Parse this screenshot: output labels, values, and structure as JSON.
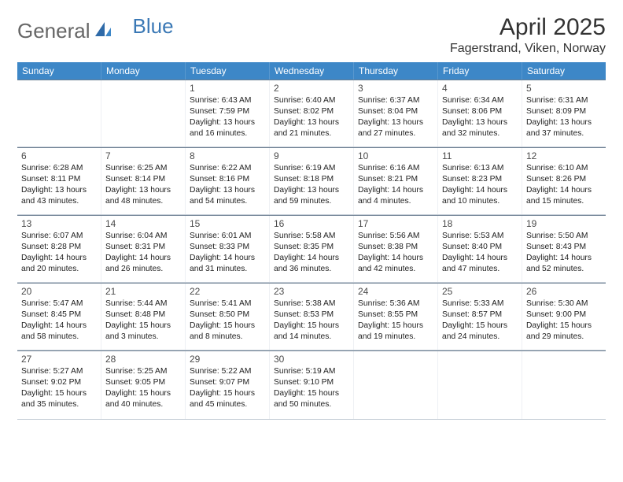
{
  "logo": {
    "text1": "General",
    "text2": "Blue"
  },
  "title": "April 2025",
  "location": "Fagerstrand, Viken, Norway",
  "colors": {
    "header_bg": "#3d87c7",
    "header_text": "#ffffff",
    "row_border_top": "#6b7d90",
    "row_border_bottom": "#c8d0d9",
    "logo_blue": "#3a78b5",
    "body_text": "#333333"
  },
  "days_of_week": [
    "Sunday",
    "Monday",
    "Tuesday",
    "Wednesday",
    "Thursday",
    "Friday",
    "Saturday"
  ],
  "weeks": [
    [
      null,
      null,
      {
        "n": "1",
        "sr": "Sunrise: 6:43 AM",
        "ss": "Sunset: 7:59 PM",
        "d1": "Daylight: 13 hours",
        "d2": "and 16 minutes."
      },
      {
        "n": "2",
        "sr": "Sunrise: 6:40 AM",
        "ss": "Sunset: 8:02 PM",
        "d1": "Daylight: 13 hours",
        "d2": "and 21 minutes."
      },
      {
        "n": "3",
        "sr": "Sunrise: 6:37 AM",
        "ss": "Sunset: 8:04 PM",
        "d1": "Daylight: 13 hours",
        "d2": "and 27 minutes."
      },
      {
        "n": "4",
        "sr": "Sunrise: 6:34 AM",
        "ss": "Sunset: 8:06 PM",
        "d1": "Daylight: 13 hours",
        "d2": "and 32 minutes."
      },
      {
        "n": "5",
        "sr": "Sunrise: 6:31 AM",
        "ss": "Sunset: 8:09 PM",
        "d1": "Daylight: 13 hours",
        "d2": "and 37 minutes."
      }
    ],
    [
      {
        "n": "6",
        "sr": "Sunrise: 6:28 AM",
        "ss": "Sunset: 8:11 PM",
        "d1": "Daylight: 13 hours",
        "d2": "and 43 minutes."
      },
      {
        "n": "7",
        "sr": "Sunrise: 6:25 AM",
        "ss": "Sunset: 8:14 PM",
        "d1": "Daylight: 13 hours",
        "d2": "and 48 minutes."
      },
      {
        "n": "8",
        "sr": "Sunrise: 6:22 AM",
        "ss": "Sunset: 8:16 PM",
        "d1": "Daylight: 13 hours",
        "d2": "and 54 minutes."
      },
      {
        "n": "9",
        "sr": "Sunrise: 6:19 AM",
        "ss": "Sunset: 8:18 PM",
        "d1": "Daylight: 13 hours",
        "d2": "and 59 minutes."
      },
      {
        "n": "10",
        "sr": "Sunrise: 6:16 AM",
        "ss": "Sunset: 8:21 PM",
        "d1": "Daylight: 14 hours",
        "d2": "and 4 minutes."
      },
      {
        "n": "11",
        "sr": "Sunrise: 6:13 AM",
        "ss": "Sunset: 8:23 PM",
        "d1": "Daylight: 14 hours",
        "d2": "and 10 minutes."
      },
      {
        "n": "12",
        "sr": "Sunrise: 6:10 AM",
        "ss": "Sunset: 8:26 PM",
        "d1": "Daylight: 14 hours",
        "d2": "and 15 minutes."
      }
    ],
    [
      {
        "n": "13",
        "sr": "Sunrise: 6:07 AM",
        "ss": "Sunset: 8:28 PM",
        "d1": "Daylight: 14 hours",
        "d2": "and 20 minutes."
      },
      {
        "n": "14",
        "sr": "Sunrise: 6:04 AM",
        "ss": "Sunset: 8:31 PM",
        "d1": "Daylight: 14 hours",
        "d2": "and 26 minutes."
      },
      {
        "n": "15",
        "sr": "Sunrise: 6:01 AM",
        "ss": "Sunset: 8:33 PM",
        "d1": "Daylight: 14 hours",
        "d2": "and 31 minutes."
      },
      {
        "n": "16",
        "sr": "Sunrise: 5:58 AM",
        "ss": "Sunset: 8:35 PM",
        "d1": "Daylight: 14 hours",
        "d2": "and 36 minutes."
      },
      {
        "n": "17",
        "sr": "Sunrise: 5:56 AM",
        "ss": "Sunset: 8:38 PM",
        "d1": "Daylight: 14 hours",
        "d2": "and 42 minutes."
      },
      {
        "n": "18",
        "sr": "Sunrise: 5:53 AM",
        "ss": "Sunset: 8:40 PM",
        "d1": "Daylight: 14 hours",
        "d2": "and 47 minutes."
      },
      {
        "n": "19",
        "sr": "Sunrise: 5:50 AM",
        "ss": "Sunset: 8:43 PM",
        "d1": "Daylight: 14 hours",
        "d2": "and 52 minutes."
      }
    ],
    [
      {
        "n": "20",
        "sr": "Sunrise: 5:47 AM",
        "ss": "Sunset: 8:45 PM",
        "d1": "Daylight: 14 hours",
        "d2": "and 58 minutes."
      },
      {
        "n": "21",
        "sr": "Sunrise: 5:44 AM",
        "ss": "Sunset: 8:48 PM",
        "d1": "Daylight: 15 hours",
        "d2": "and 3 minutes."
      },
      {
        "n": "22",
        "sr": "Sunrise: 5:41 AM",
        "ss": "Sunset: 8:50 PM",
        "d1": "Daylight: 15 hours",
        "d2": "and 8 minutes."
      },
      {
        "n": "23",
        "sr": "Sunrise: 5:38 AM",
        "ss": "Sunset: 8:53 PM",
        "d1": "Daylight: 15 hours",
        "d2": "and 14 minutes."
      },
      {
        "n": "24",
        "sr": "Sunrise: 5:36 AM",
        "ss": "Sunset: 8:55 PM",
        "d1": "Daylight: 15 hours",
        "d2": "and 19 minutes."
      },
      {
        "n": "25",
        "sr": "Sunrise: 5:33 AM",
        "ss": "Sunset: 8:57 PM",
        "d1": "Daylight: 15 hours",
        "d2": "and 24 minutes."
      },
      {
        "n": "26",
        "sr": "Sunrise: 5:30 AM",
        "ss": "Sunset: 9:00 PM",
        "d1": "Daylight: 15 hours",
        "d2": "and 29 minutes."
      }
    ],
    [
      {
        "n": "27",
        "sr": "Sunrise: 5:27 AM",
        "ss": "Sunset: 9:02 PM",
        "d1": "Daylight: 15 hours",
        "d2": "and 35 minutes."
      },
      {
        "n": "28",
        "sr": "Sunrise: 5:25 AM",
        "ss": "Sunset: 9:05 PM",
        "d1": "Daylight: 15 hours",
        "d2": "and 40 minutes."
      },
      {
        "n": "29",
        "sr": "Sunrise: 5:22 AM",
        "ss": "Sunset: 9:07 PM",
        "d1": "Daylight: 15 hours",
        "d2": "and 45 minutes."
      },
      {
        "n": "30",
        "sr": "Sunrise: 5:19 AM",
        "ss": "Sunset: 9:10 PM",
        "d1": "Daylight: 15 hours",
        "d2": "and 50 minutes."
      },
      null,
      null,
      null
    ]
  ]
}
